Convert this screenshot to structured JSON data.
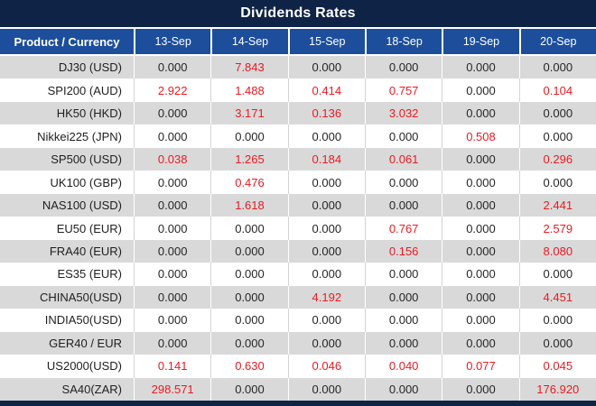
{
  "title": "Dividends Rates",
  "colors": {
    "title_bar_bg": "#0e2345",
    "header_bg": "#1d4e9c",
    "row_alt_bg": "#d9d9d9",
    "row_bg": "#ffffff",
    "value_red": "#ea1a21",
    "value_black": "#262626"
  },
  "table": {
    "product_header": "Product / Currency",
    "date_headers": [
      "13-Sep",
      "14-Sep",
      "15-Sep",
      "18-Sep",
      "19-Sep",
      "20-Sep"
    ],
    "rows": [
      {
        "product": "DJ30 (USD)",
        "values": [
          "0.000",
          "7.843",
          "0.000",
          "0.000",
          "0.000",
          "0.000"
        ],
        "red": [
          false,
          true,
          false,
          false,
          false,
          false
        ]
      },
      {
        "product": "SPI200 (AUD)",
        "values": [
          "2.922",
          "1.488",
          "0.414",
          "0.757",
          "0.000",
          "0.104"
        ],
        "red": [
          true,
          true,
          true,
          true,
          false,
          true
        ]
      },
      {
        "product": "HK50 (HKD)",
        "values": [
          "0.000",
          "3.171",
          "0.136",
          "3.032",
          "0.000",
          "0.000"
        ],
        "red": [
          false,
          true,
          true,
          true,
          false,
          false
        ]
      },
      {
        "product": "Nikkei225 (JPN)",
        "values": [
          "0.000",
          "0.000",
          "0.000",
          "0.000",
          "0.508",
          "0.000"
        ],
        "red": [
          false,
          false,
          false,
          false,
          true,
          false
        ]
      },
      {
        "product": "SP500 (USD)",
        "values": [
          "0.038",
          "1.265",
          "0.184",
          "0.061",
          "0.000",
          "0.296"
        ],
        "red": [
          true,
          true,
          true,
          true,
          false,
          true
        ]
      },
      {
        "product": "UK100 (GBP)",
        "values": [
          "0.000",
          "0.476",
          "0.000",
          "0.000",
          "0.000",
          "0.000"
        ],
        "red": [
          false,
          true,
          false,
          false,
          false,
          false
        ]
      },
      {
        "product": "NAS100 (USD)",
        "values": [
          "0.000",
          "1.618",
          "0.000",
          "0.000",
          "0.000",
          "2.441"
        ],
        "red": [
          false,
          true,
          false,
          false,
          false,
          true
        ]
      },
      {
        "product": "EU50 (EUR)",
        "values": [
          "0.000",
          "0.000",
          "0.000",
          "0.767",
          "0.000",
          "2.579"
        ],
        "red": [
          false,
          false,
          false,
          true,
          false,
          true
        ]
      },
      {
        "product": "FRA40 (EUR)",
        "values": [
          "0.000",
          "0.000",
          "0.000",
          "0.156",
          "0.000",
          "8.080"
        ],
        "red": [
          false,
          false,
          false,
          true,
          false,
          true
        ]
      },
      {
        "product": "ES35 (EUR)",
        "values": [
          "0.000",
          "0.000",
          "0.000",
          "0.000",
          "0.000",
          "0.000"
        ],
        "red": [
          false,
          false,
          false,
          false,
          false,
          false
        ]
      },
      {
        "product": "CHINA50(USD)",
        "values": [
          "0.000",
          "0.000",
          "4.192",
          "0.000",
          "0.000",
          "4.451"
        ],
        "red": [
          false,
          false,
          true,
          false,
          false,
          true
        ]
      },
      {
        "product": "INDIA50(USD)",
        "values": [
          "0.000",
          "0.000",
          "0.000",
          "0.000",
          "0.000",
          "0.000"
        ],
        "red": [
          false,
          false,
          false,
          false,
          false,
          false
        ]
      },
      {
        "product": "GER40 / EUR",
        "values": [
          "0.000",
          "0.000",
          "0.000",
          "0.000",
          "0.000",
          "0.000"
        ],
        "red": [
          false,
          false,
          false,
          false,
          false,
          false
        ]
      },
      {
        "product": "US2000(USD)",
        "values": [
          "0.141",
          "0.630",
          "0.046",
          "0.040",
          "0.077",
          "0.045"
        ],
        "red": [
          true,
          true,
          true,
          true,
          true,
          true
        ]
      },
      {
        "product": "SA40(ZAR)",
        "values": [
          "298.571",
          "0.000",
          "0.000",
          "0.000",
          "0.000",
          "176.920"
        ],
        "red": [
          true,
          false,
          false,
          false,
          false,
          true
        ]
      }
    ]
  }
}
